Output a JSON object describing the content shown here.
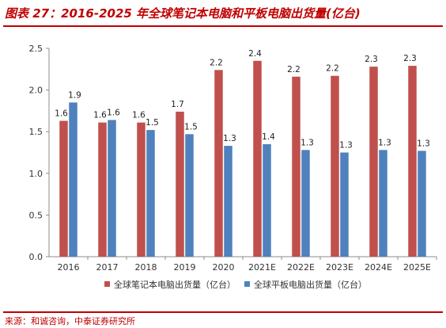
{
  "title": "图表 27：2016-2025 年全球笔记本电脑和平板电脑出货量(亿台)",
  "source": "来源：和诚咨询，中泰证券研究所",
  "chart_data": {
    "type": "bar",
    "categories": [
      "2016",
      "2017",
      "2018",
      "2019",
      "2020",
      "2021E",
      "2022E",
      "2023E",
      "2024E",
      "2025E"
    ],
    "series": [
      {
        "name": "全球笔记本电脑出货量（亿台）",
        "color": "#c0504d",
        "values": [
          1.63,
          1.61,
          1.61,
          1.74,
          2.24,
          2.35,
          2.16,
          2.17,
          2.28,
          2.29
        ],
        "labels": [
          "1.6",
          "1.6",
          "1.6",
          "1.7",
          "2.2",
          "2.4",
          "2.2",
          "2.2",
          "2.3",
          "2.3"
        ]
      },
      {
        "name": "全球平板电脑出货量（亿台）",
        "color": "#4f81bd",
        "values": [
          1.85,
          1.64,
          1.52,
          1.47,
          1.33,
          1.35,
          1.28,
          1.25,
          1.28,
          1.27
        ],
        "labels": [
          "1.9",
          "1.6",
          "1.5",
          "1.5",
          "1.3",
          "1.4",
          "1.3",
          "1.3",
          "1.3",
          "1.3"
        ]
      }
    ],
    "ylim": [
      0,
      2.5
    ],
    "yticks": [
      "0.0",
      "0.5",
      "1.0",
      "1.5",
      "2.0",
      "2.5"
    ],
    "grid": false,
    "legend": "bottom"
  }
}
